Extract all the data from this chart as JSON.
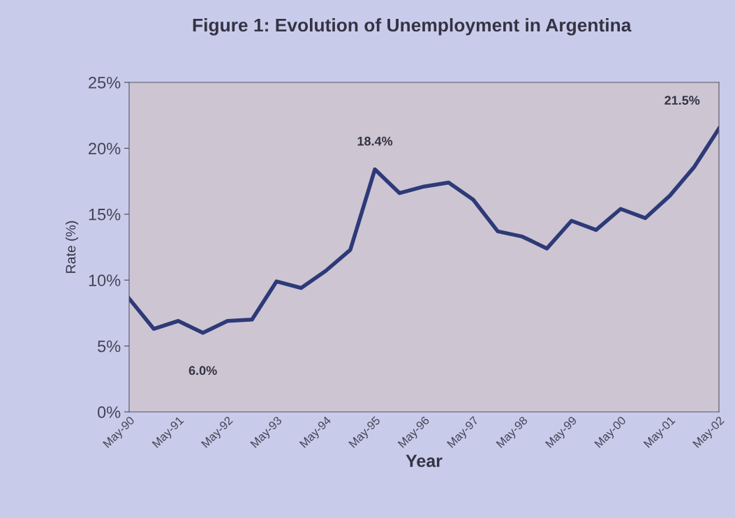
{
  "chart_data": {
    "type": "line",
    "title": "Figure 1: Evolution of Unemployment in Argentina",
    "xlabel": "Year",
    "ylabel": "Rate (%)",
    "categories": [
      "May-90",
      null,
      "May-91",
      null,
      "May-92",
      null,
      "May-93",
      null,
      "May-94",
      null,
      "May-95",
      null,
      "May-96",
      null,
      "May-97",
      null,
      "May-98",
      null,
      "May-99",
      null,
      "May-00",
      null,
      "May-01",
      null,
      "May-02"
    ],
    "series": [
      {
        "color": "#2e3a78",
        "values": [
          8.6,
          6.3,
          6.9,
          6.0,
          6.9,
          7.0,
          9.9,
          9.4,
          10.7,
          12.3,
          18.4,
          16.6,
          17.1,
          17.4,
          16.1,
          13.7,
          13.3,
          12.4,
          14.5,
          13.8,
          15.4,
          14.7,
          16.4,
          18.6,
          21.5
        ],
        "value_labels": [
          null,
          null,
          null,
          "6.0%",
          null,
          null,
          null,
          null,
          null,
          null,
          "18.4%",
          null,
          null,
          null,
          null,
          null,
          null,
          null,
          null,
          null,
          null,
          null,
          null,
          null,
          "21.5%"
        ]
      }
    ],
    "ylim": [
      0,
      25
    ],
    "yticks": [
      {
        "value": 0,
        "label": "0%"
      },
      {
        "value": 5,
        "label": "5%"
      },
      {
        "value": 10,
        "label": "10%"
      },
      {
        "value": 15,
        "label": "15%"
      },
      {
        "value": 20,
        "label": "20%"
      },
      {
        "value": 25,
        "label": "25%"
      }
    ],
    "grid": false,
    "legend": false,
    "marker": "none",
    "line_style": "solid"
  }
}
